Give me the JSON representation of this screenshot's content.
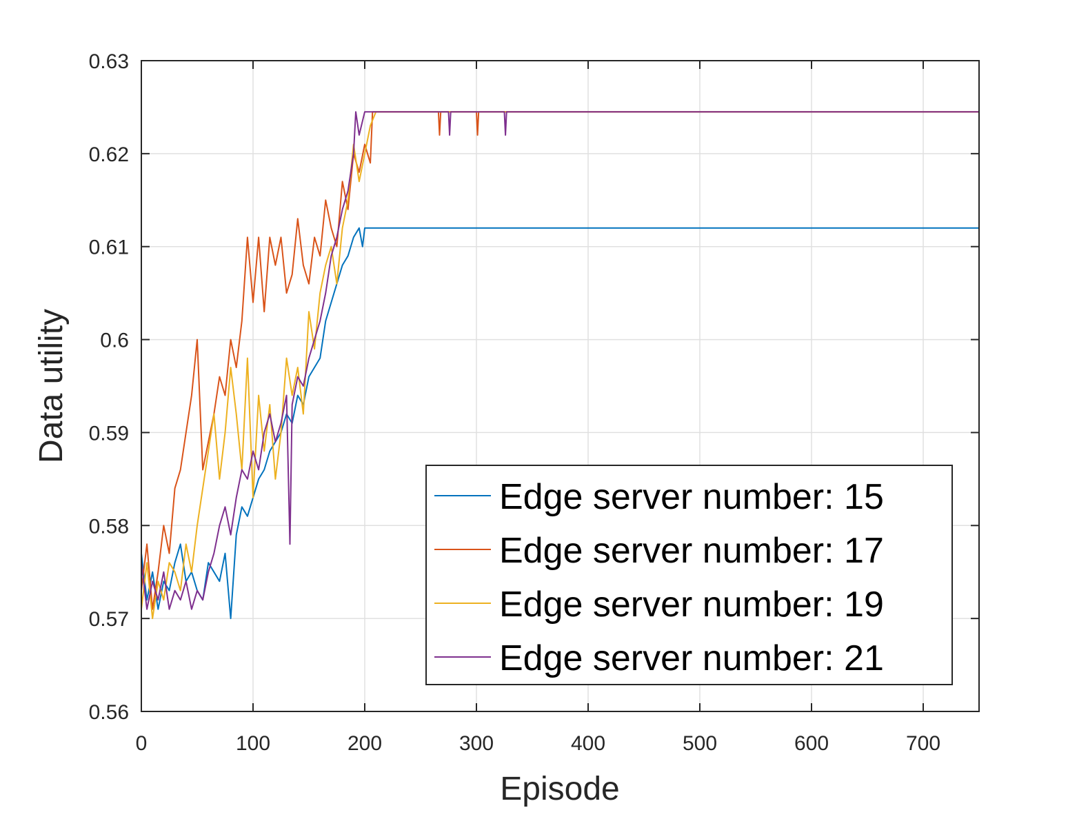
{
  "chart_data": {
    "type": "line",
    "title": "",
    "xlabel": "Episode",
    "ylabel": "Data utility",
    "xlim": [
      0,
      750
    ],
    "ylim": [
      0.56,
      0.63
    ],
    "xticks": [
      0,
      100,
      200,
      300,
      400,
      500,
      600,
      700
    ],
    "xtick_labels": [
      "0",
      "100",
      "200",
      "300",
      "400",
      "500",
      "600",
      "700"
    ],
    "yticks": [
      0.56,
      0.57,
      0.58,
      0.59,
      0.6,
      0.61,
      0.62,
      0.63
    ],
    "ytick_labels": [
      "0.56",
      "0.57",
      "0.58",
      "0.59",
      "0.6",
      "0.61",
      "0.62",
      "0.63"
    ],
    "grid": true,
    "legend_position": "bottom-right",
    "series": [
      {
        "name": "Edge server number: 15",
        "color": "#0072BD",
        "x": [
          0,
          5,
          10,
          15,
          20,
          25,
          30,
          35,
          40,
          45,
          50,
          55,
          60,
          65,
          70,
          75,
          80,
          85,
          90,
          95,
          100,
          105,
          110,
          115,
          120,
          125,
          130,
          135,
          140,
          145,
          150,
          155,
          160,
          165,
          170,
          175,
          180,
          185,
          190,
          195,
          198,
          200,
          210,
          300,
          400,
          500,
          600,
          700,
          750
        ],
        "y": [
          0.577,
          0.572,
          0.575,
          0.571,
          0.574,
          0.573,
          0.576,
          0.578,
          0.574,
          0.575,
          0.573,
          0.572,
          0.576,
          0.575,
          0.574,
          0.577,
          0.57,
          0.579,
          0.582,
          0.581,
          0.583,
          0.585,
          0.586,
          0.588,
          0.589,
          0.59,
          0.592,
          0.591,
          0.594,
          0.593,
          0.596,
          0.597,
          0.598,
          0.602,
          0.604,
          0.606,
          0.608,
          0.609,
          0.611,
          0.612,
          0.61,
          0.612,
          0.612,
          0.612,
          0.612,
          0.612,
          0.612,
          0.612,
          0.612
        ]
      },
      {
        "name": "Edge server number: 17",
        "color": "#D95319",
        "x": [
          0,
          5,
          10,
          15,
          20,
          25,
          30,
          35,
          40,
          45,
          50,
          55,
          60,
          65,
          70,
          75,
          80,
          85,
          90,
          95,
          100,
          105,
          110,
          115,
          120,
          125,
          130,
          135,
          140,
          145,
          150,
          155,
          160,
          165,
          170,
          175,
          180,
          185,
          190,
          195,
          200,
          205,
          207,
          210,
          266,
          267,
          268,
          300,
          301,
          302,
          400,
          500,
          600,
          700,
          750
        ],
        "y": [
          0.573,
          0.578,
          0.571,
          0.575,
          0.58,
          0.577,
          0.584,
          0.586,
          0.59,
          0.594,
          0.6,
          0.586,
          0.589,
          0.592,
          0.596,
          0.594,
          0.6,
          0.597,
          0.602,
          0.611,
          0.604,
          0.611,
          0.603,
          0.611,
          0.608,
          0.611,
          0.605,
          0.607,
          0.613,
          0.608,
          0.606,
          0.611,
          0.609,
          0.615,
          0.612,
          0.61,
          0.617,
          0.614,
          0.62,
          0.618,
          0.621,
          0.619,
          0.6245,
          0.6245,
          0.6245,
          0.622,
          0.6245,
          0.6245,
          0.622,
          0.6245,
          0.6245,
          0.6245,
          0.6245,
          0.6245,
          0.6245
        ]
      },
      {
        "name": "Edge server number: 19",
        "color": "#EDB120",
        "x": [
          0,
          5,
          10,
          15,
          20,
          25,
          30,
          35,
          40,
          45,
          50,
          55,
          60,
          65,
          70,
          75,
          80,
          85,
          90,
          95,
          100,
          105,
          110,
          115,
          120,
          125,
          130,
          135,
          140,
          145,
          150,
          155,
          160,
          165,
          170,
          175,
          180,
          185,
          190,
          195,
          200,
          205,
          210,
          300,
          400,
          500,
          600,
          700,
          750
        ],
        "y": [
          0.571,
          0.576,
          0.57,
          0.574,
          0.572,
          0.576,
          0.575,
          0.573,
          0.578,
          0.575,
          0.58,
          0.584,
          0.588,
          0.592,
          0.585,
          0.59,
          0.597,
          0.592,
          0.586,
          0.598,
          0.583,
          0.594,
          0.588,
          0.593,
          0.585,
          0.59,
          0.598,
          0.594,
          0.597,
          0.592,
          0.603,
          0.599,
          0.605,
          0.608,
          0.61,
          0.606,
          0.612,
          0.615,
          0.621,
          0.617,
          0.62,
          0.623,
          0.6245,
          0.6245,
          0.6245,
          0.6245,
          0.6245,
          0.6245,
          0.6245
        ]
      },
      {
        "name": "Edge server number: 21",
        "color": "#7E2F8E",
        "x": [
          0,
          5,
          10,
          15,
          20,
          25,
          30,
          35,
          40,
          45,
          50,
          55,
          60,
          65,
          70,
          75,
          80,
          85,
          90,
          95,
          100,
          105,
          110,
          115,
          120,
          125,
          130,
          133,
          135,
          140,
          145,
          150,
          155,
          160,
          165,
          170,
          175,
          180,
          185,
          190,
          192,
          195,
          200,
          210,
          275,
          276,
          277,
          325,
          326,
          327,
          400,
          500,
          600,
          700,
          750
        ],
        "y": [
          0.576,
          0.571,
          0.574,
          0.572,
          0.575,
          0.571,
          0.573,
          0.572,
          0.574,
          0.571,
          0.573,
          0.572,
          0.575,
          0.577,
          0.58,
          0.582,
          0.579,
          0.583,
          0.586,
          0.585,
          0.588,
          0.586,
          0.59,
          0.592,
          0.589,
          0.591,
          0.594,
          0.578,
          0.593,
          0.596,
          0.595,
          0.598,
          0.6,
          0.602,
          0.605,
          0.609,
          0.611,
          0.614,
          0.616,
          0.62,
          0.6245,
          0.622,
          0.6245,
          0.6245,
          0.6245,
          0.622,
          0.6245,
          0.6245,
          0.622,
          0.6245,
          0.6245,
          0.6245,
          0.6245,
          0.6245,
          0.6245
        ]
      }
    ]
  }
}
